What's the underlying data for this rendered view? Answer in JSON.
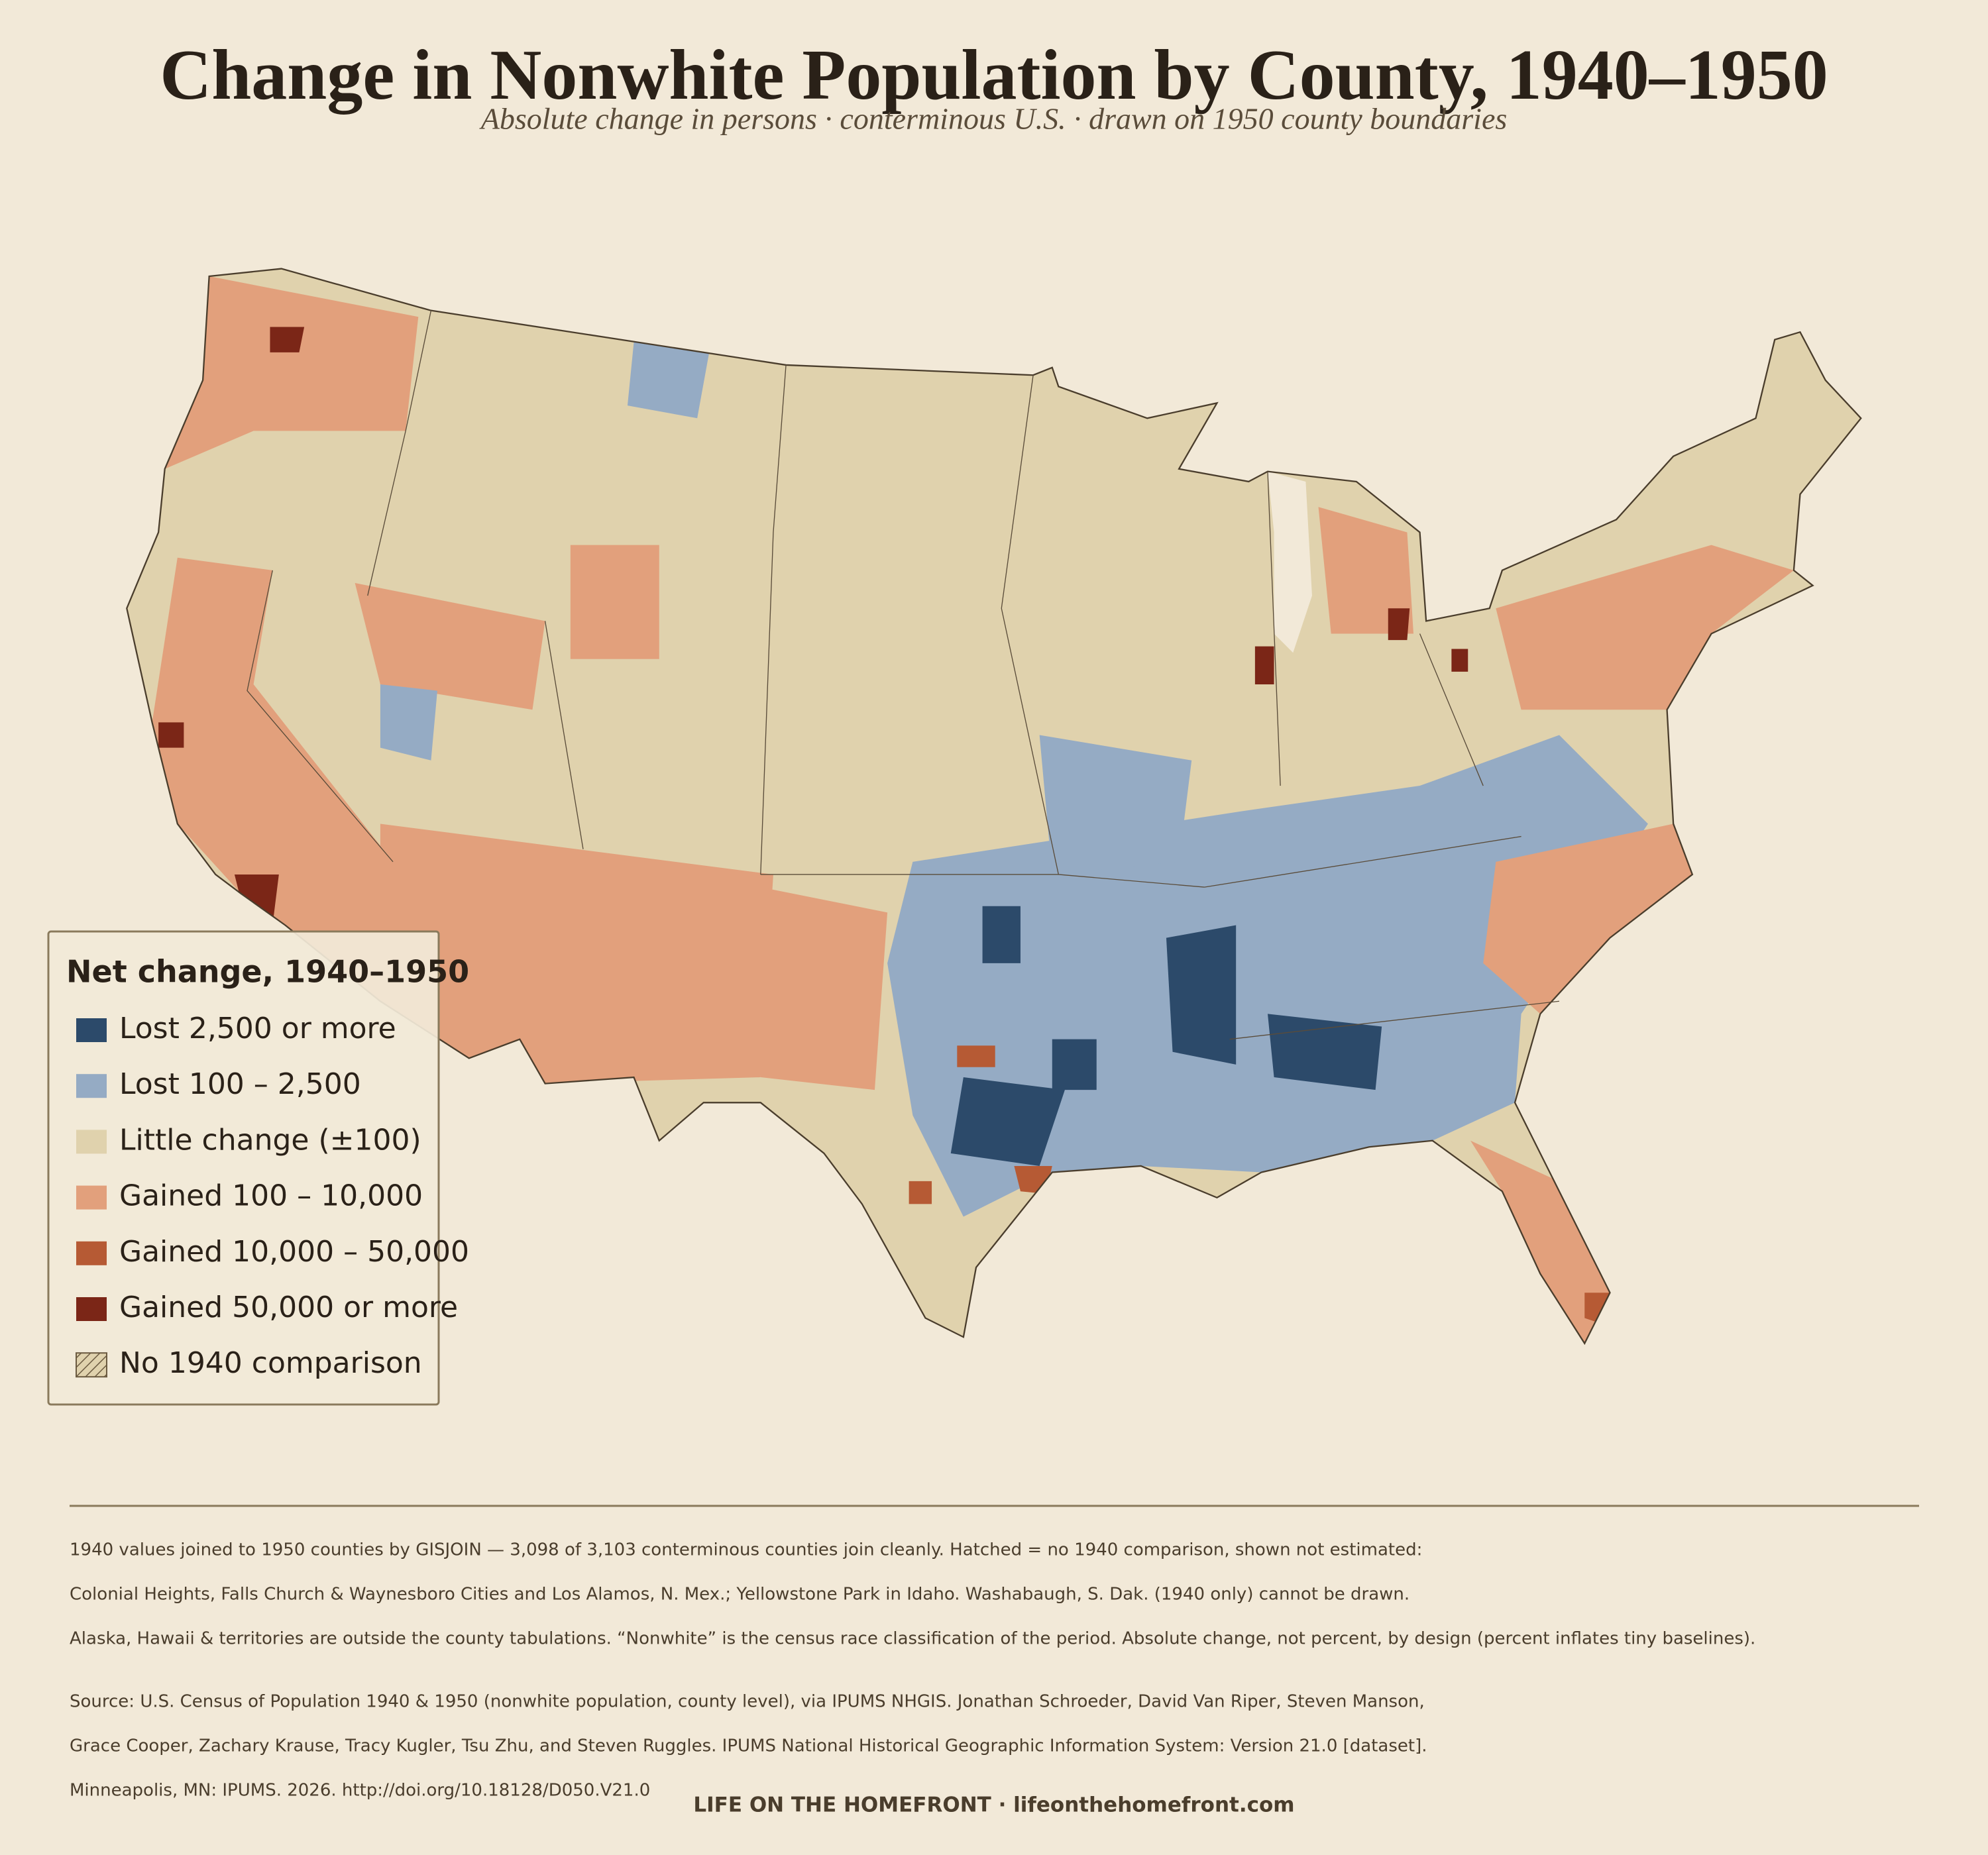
{
  "header": {
    "title": "Change in Nonwhite Population by County, 1940–1950",
    "subtitle": "Absolute change in persons · conterminous U.S. · drawn on 1950 county boundaries"
  },
  "legend": {
    "title": "Net change, 1940–1950",
    "items": [
      {
        "label": "Lost 2,500 or more",
        "color": "#2c4a6a"
      },
      {
        "label": "Lost 100 – 2,500",
        "color": "#95abc4"
      },
      {
        "label": "Little change (±100)",
        "color": "#e0d2ad"
      },
      {
        "label": "Gained 100 – 10,000",
        "color": "#e2a07c"
      },
      {
        "label": "Gained 10,000 – 50,000",
        "color": "#b65a34"
      },
      {
        "label": "Gained 50,000 or more",
        "color": "#7b2617"
      },
      {
        "label": "No 1940 comparison",
        "color": "#e0d2ad",
        "hatched": true
      }
    ]
  },
  "notes": [
    "1940 values joined to 1950 counties by GISJOIN — 3,098 of 3,103 conterminous counties join cleanly. Hatched = no 1940 comparison, shown not estimated:",
    "Colonial Heights, Falls Church & Waynesboro Cities and Los Alamos, N. Mex.; Yellowstone Park in Idaho. Washabaugh, S. Dak. (1940 only) cannot be drawn.",
    "Alaska, Hawaii & territories are outside the county tabulations. “Nonwhite” is the census race classification of the period. Absolute change, not percent, by design (percent inflates tiny baselines)."
  ],
  "source": [
    "Source: U.S. Census of Population 1940 & 1950 (nonwhite population, county level), via IPUMS NHGIS. Jonathan Schroeder, David Van Riper, Steven Manson,",
    "Grace Cooper, Zachary Krause, Tracy Kugler, Tsu Zhu, and Steven Ruggles. IPUMS National Historical Geographic Information System: Version 21.0 [dataset].",
    "Minneapolis, MN: IPUMS. 2026. http://doi.org/10.18128/D050.V21.0"
  ],
  "credit": "LIFE ON THE HOMEFRONT · lifeonthehomefront.com"
}
